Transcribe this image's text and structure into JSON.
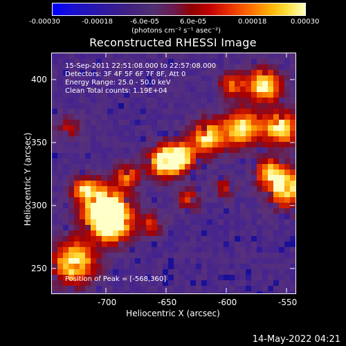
{
  "colorbar": {
    "tick_labels": [
      "-0.00030",
      "-0.00018",
      "-6.0e-05",
      "6.0e-05",
      "0.00018",
      "0.00030"
    ],
    "units": "(photons cm⁻² s⁻¹ asec⁻²)"
  },
  "title": "Reconstructed RHESSI Image",
  "annotations": {
    "time_range": "15-Sep-2011 22:51:08.000 to 22:57:08.000",
    "detectors": "Detectors: 3F 4F 5F 6F 7F 8F, Att 0",
    "energy_range": "Energy Range: 25.0 - 50.0 keV",
    "method": "Clean    Total counts: 1.19E+04",
    "peak_position": "Position of Peak = [-568,360]"
  },
  "axes": {
    "xlabel": "Heliocentric X (arcsec)",
    "ylabel": "Heliocentric Y (arcsec)",
    "xticks": [
      "-700",
      "-650",
      "-600",
      "-550"
    ],
    "yticks": [
      "400",
      "350",
      "300",
      "250"
    ],
    "xlim": [
      -747,
      -550
    ],
    "ylim": [
      228,
      427
    ]
  },
  "footer": {
    "date": "14-May-2022 04:21"
  },
  "colors": {
    "background": "#000000",
    "foreground": "#ffffff"
  }
}
